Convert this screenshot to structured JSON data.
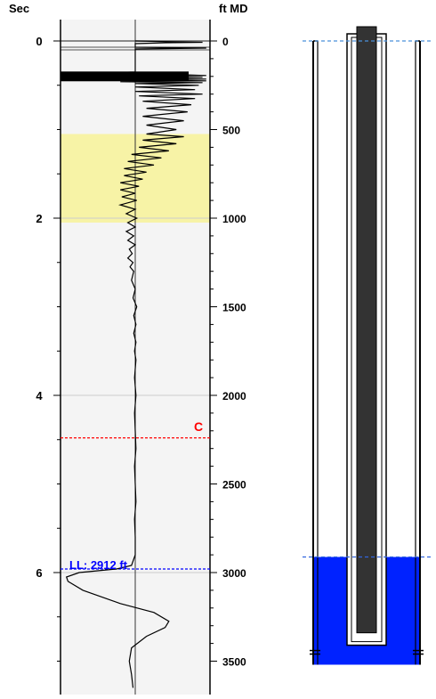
{
  "chart_data": {
    "type": "line",
    "title": "",
    "left_axis": {
      "label": "Sec",
      "range": [
        0,
        7.3
      ],
      "major_ticks": [
        0,
        2,
        4,
        6
      ],
      "minor_step": 0.5
    },
    "right_axis": {
      "label": "ft MD",
      "range": [
        0,
        3550
      ],
      "major_ticks": [
        0,
        500,
        1000,
        1500,
        2000,
        2500,
        3000,
        3500
      ],
      "minor_step": 100
    },
    "highlight_band_sec": [
      1.05,
      2.05
    ],
    "highlight_color": "#f7f3a6",
    "gridlines_sec": [
      0,
      2,
      4,
      6
    ],
    "markers": [
      {
        "label": "C",
        "sec": 4.48,
        "color": "#ff0000"
      },
      {
        "label": "LL: 2912 ft",
        "depth_ft": 2912,
        "sec": 5.96,
        "color": "#0000ff"
      }
    ],
    "trace_baseline": 0,
    "trace_range": [
      -1,
      1
    ],
    "trace_points": [
      [
        0.0,
        0.0
      ],
      [
        0.01,
        0.55
      ],
      [
        0.015,
        0.9
      ],
      [
        0.02,
        0.4
      ],
      [
        0.03,
        0.0
      ],
      [
        0.07,
        0.0
      ],
      [
        0.08,
        0.95
      ],
      [
        0.09,
        0.0
      ],
      [
        0.35,
        0.0
      ],
      [
        0.36,
        -0.35
      ],
      [
        0.37,
        -0.4
      ],
      [
        0.38,
        0.6
      ],
      [
        0.39,
        0.95
      ],
      [
        0.4,
        -0.3
      ],
      [
        0.41,
        0.9
      ],
      [
        0.42,
        -0.35
      ],
      [
        0.43,
        0.95
      ],
      [
        0.44,
        0.15
      ],
      [
        0.45,
        0.95
      ],
      [
        0.46,
        -0.2
      ],
      [
        0.47,
        0.9
      ],
      [
        0.48,
        0.0
      ],
      [
        0.5,
        0.85
      ],
      [
        0.52,
        0.0
      ],
      [
        0.55,
        0.8
      ],
      [
        0.57,
        0.0
      ],
      [
        0.6,
        0.9
      ],
      [
        0.62,
        0.05
      ],
      [
        0.65,
        0.8
      ],
      [
        0.68,
        0.1
      ],
      [
        0.72,
        0.75
      ],
      [
        0.76,
        0.15
      ],
      [
        0.8,
        0.7
      ],
      [
        0.85,
        0.1
      ],
      [
        0.9,
        0.65
      ],
      [
        0.95,
        0.15
      ],
      [
        1.0,
        0.55
      ],
      [
        1.05,
        0.15
      ],
      [
        1.08,
        0.65
      ],
      [
        1.12,
        0.1
      ],
      [
        1.16,
        0.55
      ],
      [
        1.2,
        0.05
      ],
      [
        1.24,
        0.45
      ],
      [
        1.28,
        -0.05
      ],
      [
        1.32,
        0.35
      ],
      [
        1.36,
        -0.1
      ],
      [
        1.4,
        0.25
      ],
      [
        1.44,
        -0.15
      ],
      [
        1.48,
        0.15
      ],
      [
        1.52,
        -0.15
      ],
      [
        1.56,
        0.1
      ],
      [
        1.6,
        -0.2
      ],
      [
        1.64,
        0.05
      ],
      [
        1.68,
        -0.2
      ],
      [
        1.72,
        0.0
      ],
      [
        1.76,
        -0.18
      ],
      [
        1.8,
        0.02
      ],
      [
        1.85,
        -0.2
      ],
      [
        1.9,
        0.0
      ],
      [
        1.95,
        -0.12
      ],
      [
        2.0,
        0.02
      ],
      [
        2.05,
        -0.1
      ],
      [
        2.1,
        0.0
      ],
      [
        2.15,
        -0.12
      ],
      [
        2.2,
        -0.02
      ],
      [
        2.25,
        -0.1
      ],
      [
        2.3,
        0.0
      ],
      [
        2.35,
        -0.08
      ],
      [
        2.4,
        -0.04
      ],
      [
        2.45,
        -0.1
      ],
      [
        2.5,
        -0.03
      ],
      [
        2.55,
        -0.07
      ],
      [
        2.6,
        -0.02
      ],
      [
        2.7,
        -0.05
      ],
      [
        2.8,
        0.0
      ],
      [
        2.9,
        -0.03
      ],
      [
        3.0,
        0.02
      ],
      [
        3.1,
        -0.02
      ],
      [
        3.2,
        0.01
      ],
      [
        3.3,
        -0.02
      ],
      [
        3.4,
        0.01
      ],
      [
        3.5,
        -0.01
      ],
      [
        3.6,
        0.01
      ],
      [
        3.8,
        -0.01
      ],
      [
        4.0,
        0.01
      ],
      [
        4.2,
        -0.01
      ],
      [
        4.4,
        0.0
      ],
      [
        4.6,
        0.01
      ],
      [
        4.8,
        -0.01
      ],
      [
        5.0,
        0.0
      ],
      [
        5.2,
        0.01
      ],
      [
        5.4,
        -0.01
      ],
      [
        5.6,
        0.0
      ],
      [
        5.8,
        0.0
      ],
      [
        5.92,
        -0.05
      ],
      [
        5.96,
        -0.25
      ],
      [
        6.0,
        -0.75
      ],
      [
        6.05,
        -0.92
      ],
      [
        6.1,
        -0.9
      ],
      [
        6.2,
        -0.7
      ],
      [
        6.35,
        -0.2
      ],
      [
        6.45,
        0.25
      ],
      [
        6.55,
        0.45
      ],
      [
        6.62,
        0.4
      ],
      [
        6.72,
        0.15
      ],
      [
        6.85,
        -0.05
      ],
      [
        7.0,
        -0.08
      ],
      [
        7.15,
        -0.05
      ],
      [
        7.3,
        -0.03
      ]
    ]
  },
  "wellbore": {
    "top_line_color": "#4a90d9",
    "fluid_level_line_color": "#3366dd",
    "fluid_color": "#0022ff",
    "casing_bottom_ft": 3520,
    "tubing_bottom_ft": 3410,
    "rod_bottom_ft": 3340,
    "collar_ft": [
      3440,
      3460
    ]
  }
}
